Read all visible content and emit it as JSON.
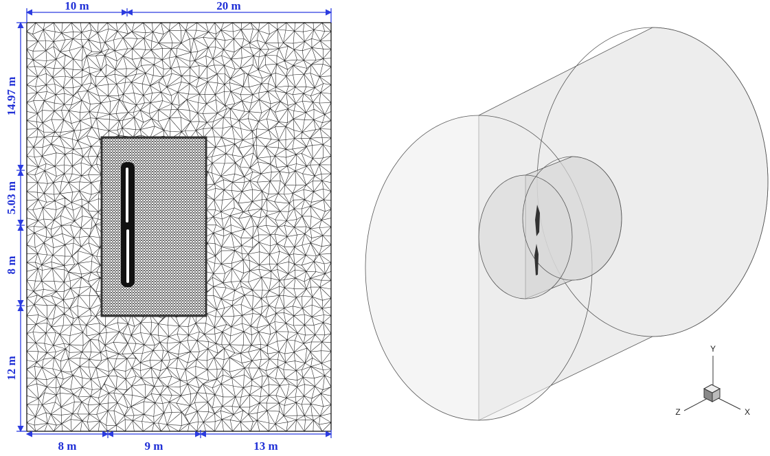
{
  "dimensions": {
    "top": [
      "10 m",
      "20 m"
    ],
    "left": [
      "14.97 m",
      "5.03 m",
      "8 m",
      "12 m"
    ],
    "bottom": [
      "8 m",
      "9 m",
      "13 m"
    ]
  },
  "axes": {
    "y": "Y",
    "z": "Z",
    "x": "X"
  }
}
